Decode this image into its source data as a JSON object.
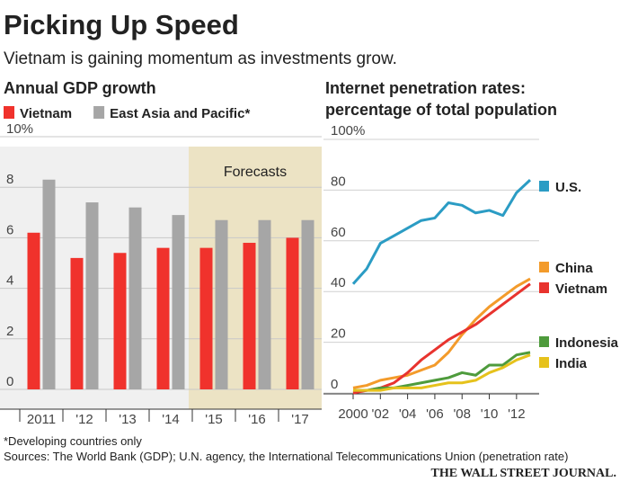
{
  "title": "Picking Up Speed",
  "subtitle": "Vietnam is gaining momentum as investments grow.",
  "footnote": "*Developing countries only",
  "source": "Sources: The World Bank (GDP); U.N. agency, the International Telecommunications Union (penetration rate)",
  "credit": "THE WALL STREET JOURNAL.",
  "chart_data": [
    {
      "type": "bar",
      "title": "Annual GDP growth",
      "categories": [
        "2011",
        "'12",
        "'13",
        "'14",
        "'15",
        "'16",
        "'17"
      ],
      "series": [
        {
          "name": "Vietnam",
          "color": "#f0322c",
          "values": [
            6.2,
            5.2,
            5.4,
            5.6,
            5.6,
            5.8,
            6.0
          ]
        },
        {
          "name": "East Asia and Pacific*",
          "color": "#a6a6a6",
          "values": [
            8.3,
            7.4,
            7.2,
            6.9,
            6.7,
            6.7,
            6.7
          ]
        }
      ],
      "ylim": [
        0,
        10
      ],
      "yticks": [
        0,
        2,
        4,
        6,
        8,
        {
          "value": 10,
          "label": "10%"
        }
      ],
      "grid": true,
      "annotation": {
        "text": "Forecasts",
        "from_category": 4,
        "color": "#ece3c4"
      }
    },
    {
      "type": "line",
      "title": [
        "Internet penetration rates:",
        "percentage of total population"
      ],
      "x": [
        2000,
        2001,
        2002,
        2003,
        2004,
        2005,
        2006,
        2007,
        2008,
        2009,
        2010,
        2011,
        2012,
        2013
      ],
      "series": [
        {
          "name": "U.S.",
          "color": "#2b9cc4",
          "values": [
            43,
            49,
            59,
            62,
            65,
            68,
            69,
            75,
            74,
            71,
            72,
            70,
            79,
            84
          ]
        },
        {
          "name": "China",
          "color": "#f39b2b",
          "values": [
            2,
            3,
            5,
            6,
            7,
            9,
            11,
            16,
            23,
            29,
            34,
            38,
            42,
            45
          ]
        },
        {
          "name": "Vietnam",
          "color": "#e8332e",
          "values": [
            0,
            1,
            2,
            4,
            8,
            13,
            17,
            21,
            24,
            27,
            31,
            35,
            39,
            43
          ]
        },
        {
          "name": "Indonesia",
          "color": "#4e9b3c",
          "values": [
            1,
            1,
            2,
            2,
            3,
            4,
            5,
            6,
            8,
            7,
            11,
            11,
            15,
            16
          ]
        },
        {
          "name": "India",
          "color": "#e6c21c",
          "values": [
            1,
            1,
            1,
            2,
            2,
            2,
            3,
            4,
            4,
            5,
            8,
            10,
            13,
            15
          ]
        }
      ],
      "xlim": [
        2000,
        2013
      ],
      "xticks": [
        2000,
        {
          "value": 2002,
          "label": "'02"
        },
        {
          "value": 2004,
          "label": "'04"
        },
        {
          "value": 2006,
          "label": "'06"
        },
        {
          "value": 2008,
          "label": "'08"
        },
        {
          "value": 2010,
          "label": "'10"
        },
        {
          "value": 2012,
          "label": "'12"
        }
      ],
      "ylim": [
        0,
        100
      ],
      "yticks": [
        0,
        20,
        40,
        60,
        80,
        {
          "value": 100,
          "label": "100%"
        }
      ],
      "grid": true
    }
  ]
}
